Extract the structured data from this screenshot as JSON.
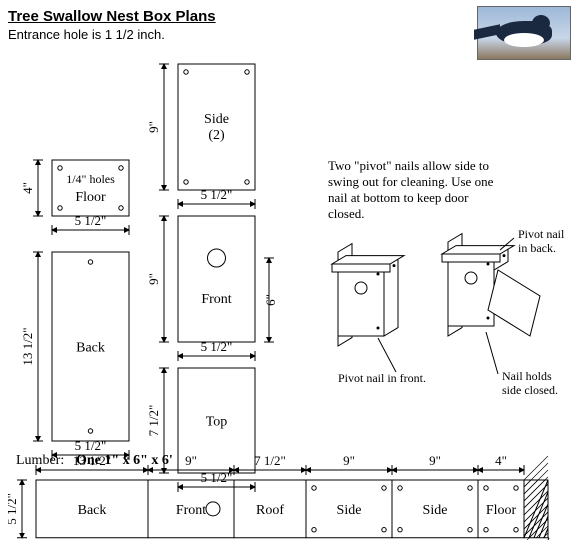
{
  "title": "Tree Swallow Nest Box Plans",
  "subtitle": "Entrance hole is 1 1/2 inch.",
  "pieces": {
    "floor": {
      "label": "Floor",
      "w": "5 1/2\"",
      "h": "4\"",
      "note": "1/4\" holes"
    },
    "back": {
      "label": "Back",
      "w": "5 1/2\"",
      "h": "13 1/2\""
    },
    "side": {
      "label": "Side",
      "sub": "(2)",
      "w": "5 1/2\"",
      "h": "9\""
    },
    "front": {
      "label": "Front",
      "w": "5 1/2\"",
      "h": "9\"",
      "entrance_h": "6\""
    },
    "top": {
      "label": "Top",
      "w": "5 1/2\"",
      "h": "7 1/2\""
    }
  },
  "iso": {
    "caption": "Two \"pivot\" nails allow side to swing out for cleaning.  Use one nail at bottom to keep door closed.",
    "label_pivot_front": "Pivot nail in front.",
    "label_pivot_back": "Pivot nail in back.",
    "label_nail_holds": "Nail holds side closed."
  },
  "lumber": {
    "heading": "Lumber:",
    "spec": "One 1\" x 6\" x 6'",
    "height": "5 1/2\"",
    "segments": [
      {
        "label": "Back",
        "dim": "13 1/2\""
      },
      {
        "label": "Front",
        "dim": "9\"",
        "circle": true
      },
      {
        "label": "Roof",
        "dim": "7 1/2\""
      },
      {
        "label": "Side",
        "dim": "9\"",
        "dots": true
      },
      {
        "label": "Side",
        "dim": "9\"",
        "dots": true
      },
      {
        "label": "Floor",
        "dim": "4\"",
        "dots": true
      }
    ]
  },
  "style": {
    "stroke": "#000000",
    "stroke_width": 1,
    "font": "14px Times New Roman",
    "dim_font": "13px Times New Roman"
  }
}
